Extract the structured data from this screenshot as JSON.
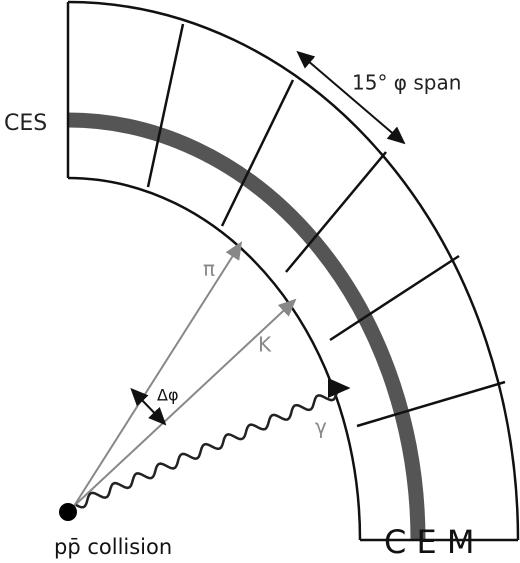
{
  "labels": {
    "ces": "CES",
    "span": "15° φ span",
    "pion": "π",
    "kaon": "K",
    "photon": "γ",
    "delta_phi": "Δφ",
    "collision": "pp̄ collision",
    "cem": "C E M"
  }
}
